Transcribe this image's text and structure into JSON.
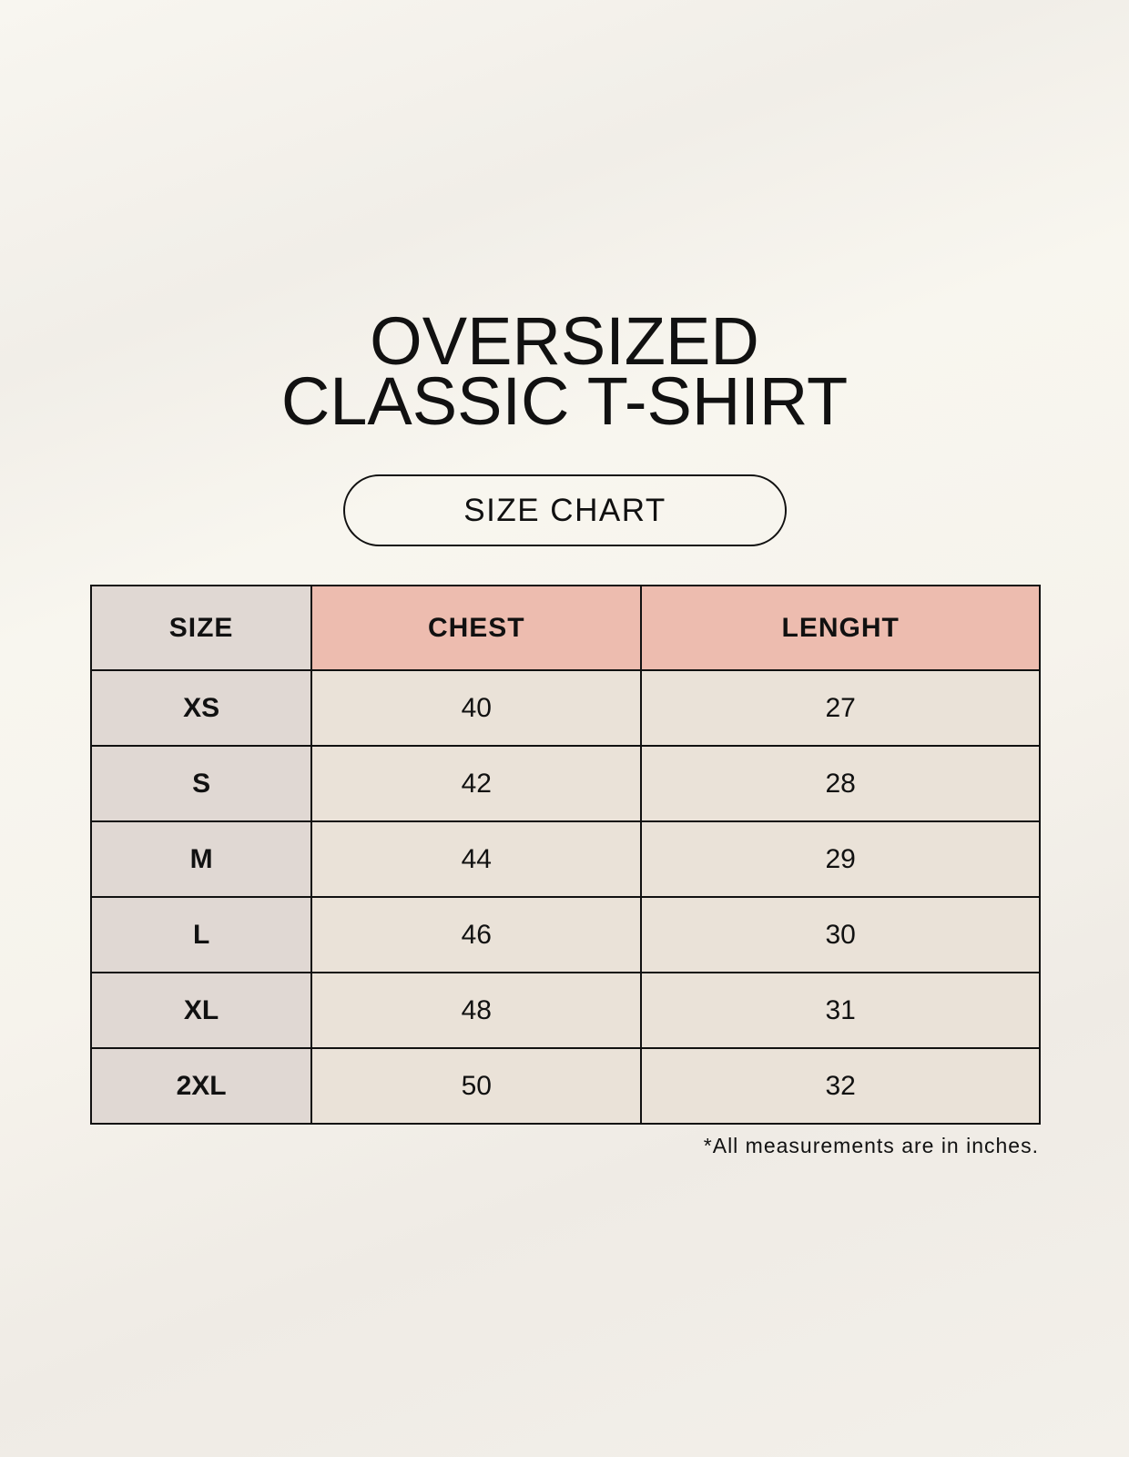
{
  "title_lines": [
    "OVERSIZED",
    "CLASSIC T-SHIRT"
  ],
  "subtitle": "SIZE CHART",
  "table": {
    "headers": [
      "SIZE",
      "CHEST",
      "LENGHT"
    ],
    "rows": [
      [
        "XS",
        "40",
        "27"
      ],
      [
        "S",
        "42",
        "28"
      ],
      [
        "M",
        "44",
        "29"
      ],
      [
        "L",
        "46",
        "30"
      ],
      [
        "XL",
        "48",
        "31"
      ],
      [
        "2XL",
        "50",
        "32"
      ]
    ]
  },
  "footnote": "*All measurements are in inches.",
  "colors": {
    "size_column": "#e0d8d3",
    "header_accent": "#edbcaf",
    "cell": "#eae2d8",
    "border": "#111111"
  }
}
